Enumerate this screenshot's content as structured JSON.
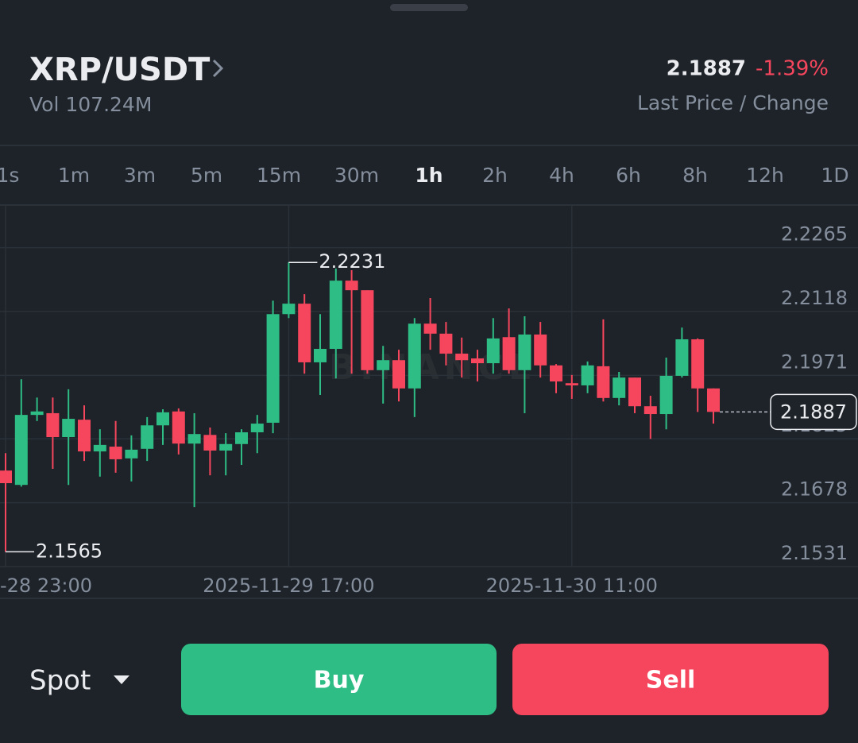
{
  "header": {
    "pair": "XRP/USDT",
    "volume": "Vol 107.24M",
    "last_price": "2.1887",
    "change": "-1.39%",
    "caption": "Last Price / Change"
  },
  "intervals": [
    "1s",
    "1m",
    "3m",
    "5m",
    "15m",
    "30m",
    "1h",
    "2h",
    "4h",
    "6h",
    "8h",
    "12h",
    "1D"
  ],
  "selected_interval": "1h",
  "chart_data": {
    "type": "candlestick",
    "watermark": "BINANCE",
    "categories": [
      "-28 23:00",
      null,
      null,
      null,
      null,
      null,
      null,
      null,
      null,
      null,
      null,
      null,
      null,
      null,
      null,
      null,
      null,
      null,
      "2025-11-29 17:00",
      null,
      null,
      null,
      null,
      null,
      null,
      null,
      null,
      null,
      null,
      null,
      null,
      null,
      null,
      null,
      null,
      null,
      "2025-11-30 11:00",
      null,
      null,
      null,
      null,
      null,
      null,
      null,
      null,
      null
    ],
    "open": [
      2.1752,
      2.1719,
      2.188,
      2.1884,
      2.1829,
      2.1869,
      2.1796,
      2.1807,
      2.178,
      2.1802,
      2.1856,
      2.1888,
      2.1814,
      2.1834,
      2.1798,
      2.1813,
      2.184,
      2.1862,
      2.2112,
      2.2136,
      2.2001,
      2.2032,
      2.2189,
      2.2167,
      2.1983,
      2.2006,
      2.1941,
      2.209,
      2.2067,
      2.2021,
      2.201,
      2.1999,
      2.2059,
      2.1983,
      2.2065,
      2.1994,
      2.1953,
      2.1948,
      2.1992,
      2.1919,
      2.1966,
      2.19,
      2.1882,
      2.197,
      2.2054,
      2.1941
    ],
    "high": [
      2.1792,
      2.1962,
      2.192,
      2.192,
      2.1939,
      2.1902,
      2.1847,
      2.1866,
      2.1833,
      2.1875,
      2.1893,
      2.1895,
      2.1884,
      2.1851,
      2.1838,
      2.1847,
      2.188,
      2.2143,
      2.2231,
      2.2158,
      2.2112,
      2.2217,
      2.2213,
      2.2167,
      2.2039,
      2.203,
      2.2103,
      2.2149,
      2.2094,
      2.2058,
      2.203,
      2.2103,
      2.2125,
      2.2107,
      2.2094,
      2.1997,
      2.1972,
      2.2003,
      2.21,
      2.1979,
      2.1966,
      2.1924,
      2.2012,
      2.2081,
      2.2056,
      2.1941
    ],
    "low": [
      2.1565,
      2.1715,
      2.1866,
      2.1756,
      2.1719,
      2.1774,
      2.1738,
      2.1747,
      2.1727,
      2.1774,
      2.1811,
      2.1789,
      2.1668,
      2.1741,
      2.1741,
      2.1765,
      2.1792,
      2.1838,
      2.2103,
      2.1975,
      2.1926,
      2.1964,
      2.1975,
      2.1975,
      2.1906,
      2.1911,
      2.1875,
      2.203,
      2.1994,
      2.1966,
      2.1957,
      2.1975,
      2.1975,
      2.1884,
      2.1966,
      2.193,
      2.1917,
      2.193,
      2.1911,
      2.1902,
      2.1884,
      2.1825,
      2.1847,
      2.1966,
      2.1887,
      2.186
    ],
    "close": [
      2.1723,
      2.188,
      2.1888,
      2.1829,
      2.1871,
      2.1796,
      2.1811,
      2.1778,
      2.18,
      2.1856,
      2.1886,
      2.1814,
      2.1836,
      2.1798,
      2.1813,
      2.184,
      2.186,
      2.2112,
      2.2136,
      2.2001,
      2.2032,
      2.2189,
      2.2167,
      2.1983,
      2.2006,
      2.1941,
      2.209,
      2.2067,
      2.2021,
      2.2006,
      2.1999,
      2.2056,
      2.1983,
      2.2065,
      2.1994,
      2.1957,
      2.1948,
      2.1994,
      2.1919,
      2.1966,
      2.19,
      2.1882,
      2.197,
      2.2054,
      2.1941,
      2.1887
    ],
    "up_color": "#2ebd85",
    "down_color": "#f6465d",
    "ylim": [
      2.1531,
      2.2363
    ],
    "yticks": [
      2.2265,
      2.2118,
      2.1971,
      2.1825,
      2.1678,
      2.1531
    ],
    "grid": true,
    "high_label": 2.2231,
    "low_label": 2.1565,
    "last_price": 2.1887
  },
  "footer": {
    "market": "Spot",
    "buy": "Buy",
    "sell": "Sell"
  }
}
